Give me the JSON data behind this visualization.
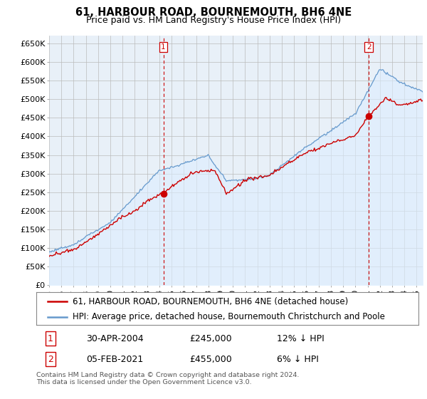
{
  "title": "61, HARBOUR ROAD, BOURNEMOUTH, BH6 4NE",
  "subtitle": "Price paid vs. HM Land Registry's House Price Index (HPI)",
  "ylim": [
    0,
    670000
  ],
  "yticks": [
    0,
    50000,
    100000,
    150000,
    200000,
    250000,
    300000,
    350000,
    400000,
    450000,
    500000,
    550000,
    600000,
    650000
  ],
  "ytick_labels": [
    "£0",
    "£50K",
    "£100K",
    "£150K",
    "£200K",
    "£250K",
    "£300K",
    "£350K",
    "£400K",
    "£450K",
    "£500K",
    "£550K",
    "£600K",
    "£650K"
  ],
  "legend_line1": "61, HARBOUR ROAD, BOURNEMOUTH, BH6 4NE (detached house)",
  "legend_line2": "HPI: Average price, detached house, Bournemouth Christchurch and Poole",
  "red_line_color": "#cc0000",
  "blue_line_color": "#6699cc",
  "blue_fill_color": "#ddeeff",
  "plot_bg_color": "#e8f0f8",
  "transaction1": {
    "date": "30-APR-2004",
    "price": 245000,
    "label": "1",
    "pct": "12% ↓ HPI",
    "x": 2004.33
  },
  "transaction2": {
    "date": "05-FEB-2021",
    "price": 455000,
    "label": "2",
    "pct": "6% ↓ HPI",
    "x": 2021.09
  },
  "footer": "Contains HM Land Registry data © Crown copyright and database right 2024.\nThis data is licensed under the Open Government Licence v3.0.",
  "background_color": "#ffffff",
  "grid_color": "#bbbbbb",
  "title_fontsize": 10.5,
  "subtitle_fontsize": 9,
  "tick_fontsize": 8,
  "legend_fontsize": 8.5,
  "annotation_fontsize": 9
}
